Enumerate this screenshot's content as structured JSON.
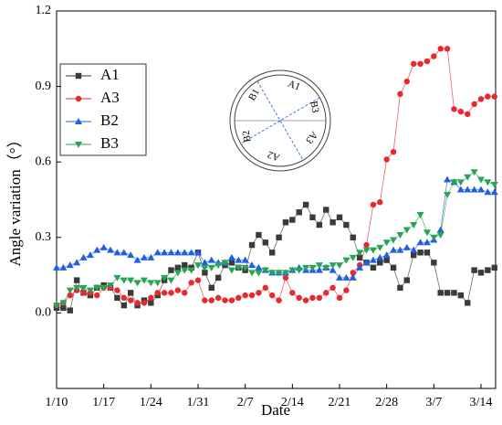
{
  "chart_data": {
    "type": "line",
    "x_label": "Date",
    "y_label": "Angle variation（°）",
    "annotations": [
      "A1",
      "B3",
      "A3",
      "A2",
      "B2",
      "B1"
    ],
    "categories": [
      "1/10",
      null,
      null,
      null,
      null,
      null,
      null,
      "1/17",
      null,
      null,
      null,
      null,
      null,
      null,
      "1/24",
      null,
      null,
      null,
      null,
      null,
      null,
      "1/31",
      null,
      null,
      null,
      null,
      null,
      null,
      "2/7",
      null,
      null,
      null,
      null,
      null,
      null,
      "2/14",
      null,
      null,
      null,
      null,
      null,
      null,
      "2/21",
      null,
      null,
      null,
      null,
      null,
      null,
      "2/28",
      null,
      null,
      null,
      null,
      null,
      null,
      "3/7",
      null,
      null,
      null,
      null,
      null,
      null,
      "3/14",
      null,
      null
    ],
    "ylim": [
      -0.3,
      1.2
    ],
    "yticks": [
      {
        "value": 0,
        "label": "0.0"
      },
      0.3,
      0.6,
      0.9,
      1.2
    ],
    "legend": "upper left",
    "series": [
      {
        "name": "A1",
        "color": "#3a3a3a",
        "marker": "square",
        "values": [
          0.02,
          0.02,
          0.01,
          0.13,
          0.08,
          0.07,
          0.1,
          0.11,
          0.1,
          0.06,
          0.03,
          0.08,
          0.03,
          0.05,
          0.04,
          0.07,
          0.13,
          0.17,
          0.18,
          0.19,
          0.18,
          0.24,
          0.16,
          0.1,
          0.14,
          0.19,
          0.2,
          0.18,
          0.17,
          0.27,
          0.31,
          0.28,
          0.24,
          0.3,
          0.36,
          0.37,
          0.4,
          0.43,
          0.38,
          0.35,
          0.41,
          0.36,
          0.38,
          0.35,
          0.3,
          0.22,
          0.2,
          0.18,
          0.2,
          0.21,
          0.18,
          0.1,
          0.13,
          0.23,
          0.24,
          0.24,
          0.2,
          0.08,
          0.08,
          0.08,
          0.07,
          0.04,
          0.17,
          0.16,
          0.17,
          0.18
        ]
      },
      {
        "name": "A3",
        "color": "#e8282b",
        "marker": "circle",
        "values": [
          0.03,
          0.04,
          0.07,
          0.09,
          0.08,
          0.08,
          0.07,
          0.1,
          0.1,
          0.09,
          0.06,
          0.05,
          0.04,
          0.04,
          0.06,
          0.08,
          0.08,
          0.08,
          0.09,
          0.08,
          0.12,
          0.13,
          0.05,
          0.05,
          0.06,
          0.05,
          0.05,
          0.06,
          0.07,
          0.07,
          0.08,
          0.1,
          0.07,
          0.05,
          0.14,
          0.08,
          0.06,
          0.05,
          0.06,
          0.06,
          0.08,
          0.1,
          0.06,
          0.09,
          0.16,
          0.19,
          0.27,
          0.43,
          0.44,
          0.61,
          0.64,
          0.87,
          0.92,
          0.99,
          0.99,
          1.0,
          1.02,
          1.05,
          1.05,
          0.81,
          0.8,
          0.79,
          0.83,
          0.85,
          0.86,
          0.86
        ]
      },
      {
        "name": "B2",
        "color": "#1e5fe6",
        "marker": "triangle-up",
        "values": [
          0.18,
          0.18,
          0.19,
          0.2,
          0.22,
          0.23,
          0.25,
          0.26,
          0.25,
          0.24,
          0.24,
          0.23,
          0.21,
          0.22,
          0.22,
          0.24,
          0.24,
          0.24,
          0.24,
          0.24,
          0.24,
          0.24,
          0.2,
          0.21,
          0.2,
          0.2,
          0.22,
          0.21,
          0.21,
          0.19,
          0.18,
          0.17,
          0.16,
          0.16,
          0.16,
          0.17,
          0.18,
          0.17,
          0.17,
          0.17,
          0.18,
          0.17,
          0.14,
          0.14,
          0.14,
          0.18,
          0.2,
          0.21,
          0.22,
          0.23,
          0.25,
          0.25,
          0.26,
          0.25,
          0.28,
          0.28,
          0.29,
          0.33,
          0.53,
          0.52,
          0.49,
          0.49,
          0.49,
          0.49,
          0.48,
          0.48
        ]
      },
      {
        "name": "B3",
        "color": "#27a455",
        "marker": "triangle-down",
        "values": [
          0.03,
          0.04,
          0.09,
          0.1,
          0.1,
          0.09,
          0.1,
          0.1,
          0.11,
          0.14,
          0.13,
          0.13,
          0.12,
          0.13,
          0.12,
          0.12,
          0.14,
          0.13,
          0.16,
          0.17,
          0.17,
          0.19,
          0.18,
          0.18,
          0.19,
          0.2,
          0.17,
          0.18,
          0.18,
          0.16,
          0.16,
          0.17,
          0.16,
          0.16,
          0.16,
          0.17,
          0.17,
          0.18,
          0.18,
          0.19,
          0.18,
          0.19,
          0.19,
          0.21,
          0.22,
          0.24,
          0.25,
          0.25,
          0.26,
          0.28,
          0.29,
          0.31,
          0.33,
          0.35,
          0.39,
          0.32,
          0.3,
          0.31,
          0.47,
          0.52,
          0.52,
          0.54,
          0.56,
          0.53,
          0.52,
          0.51
        ]
      }
    ]
  }
}
